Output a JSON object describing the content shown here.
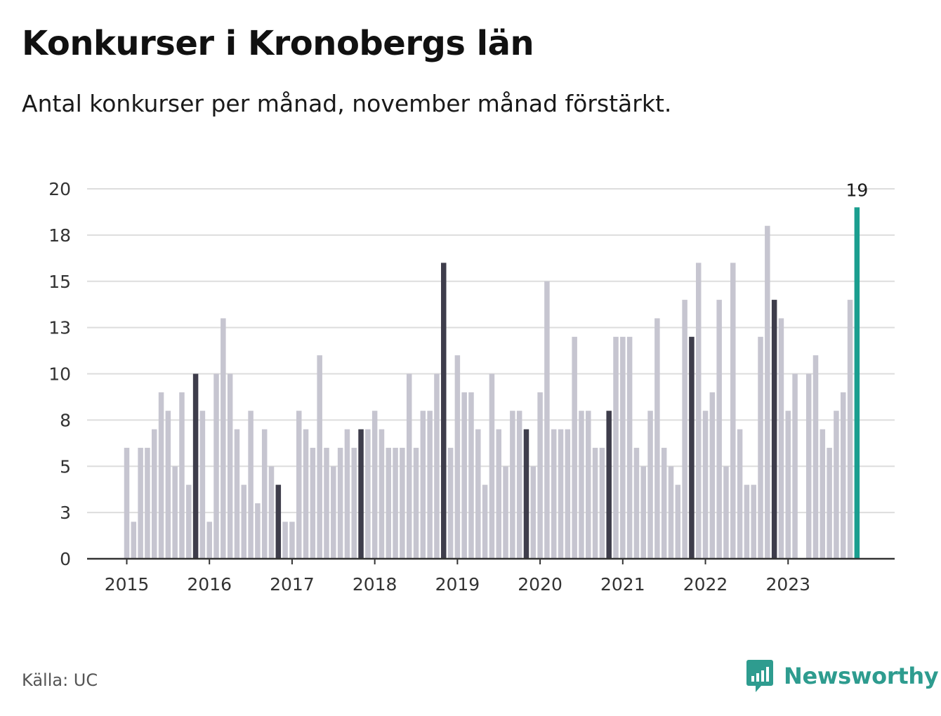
{
  "title": "Konkurser i Kronobergs län",
  "subtitle": "Antal konkurser per månad, november månad förstärkt.",
  "source": "Källa: UC",
  "brand": {
    "name": "Newsworthy",
    "icon": "bar-chart-speech-bubble-icon"
  },
  "colors": {
    "bar": "#c6c5d0",
    "highlight": "#3e3d4b",
    "latest": "#1a9e8f",
    "grid": "#dddddd",
    "axis": "#333333",
    "brand": "#2e9c8f"
  },
  "chart_data": {
    "type": "bar",
    "title": "",
    "xlabel": "",
    "ylabel": "",
    "ylim": [
      0,
      20
    ],
    "yticks": [
      0,
      3,
      5,
      8,
      10,
      13,
      15,
      18,
      20
    ],
    "yticks_actual": [
      0,
      2.5,
      5,
      7.5,
      10,
      12.5,
      15,
      17.5,
      20
    ],
    "xticks": [
      "2015",
      "2016",
      "2017",
      "2018",
      "2019",
      "2020",
      "2021",
      "2022",
      "2023"
    ],
    "start_month": "2015-01",
    "highlight_month": "november",
    "latest_label": "19",
    "grid": true,
    "legend": "none",
    "values": [
      6,
      2,
      6,
      6,
      7,
      9,
      8,
      5,
      9,
      4,
      10,
      8,
      2,
      10,
      13,
      10,
      7,
      4,
      8,
      3,
      7,
      5,
      4,
      2,
      2,
      8,
      7,
      6,
      11,
      6,
      5,
      6,
      7,
      6,
      7,
      7,
      8,
      7,
      6,
      6,
      6,
      10,
      6,
      8,
      8,
      10,
      16,
      6,
      11,
      9,
      9,
      7,
      4,
      10,
      7,
      5,
      8,
      8,
      7,
      5,
      9,
      15,
      7,
      7,
      7,
      12,
      8,
      8,
      6,
      6,
      8,
      12,
      12,
      12,
      6,
      5,
      8,
      13,
      6,
      5,
      4,
      14,
      12,
      16,
      8,
      9,
      14,
      5,
      16,
      7,
      4,
      4,
      12,
      18,
      14,
      13,
      8,
      10,
      0,
      10,
      11,
      7,
      6,
      8,
      9,
      14,
      19
    ]
  }
}
